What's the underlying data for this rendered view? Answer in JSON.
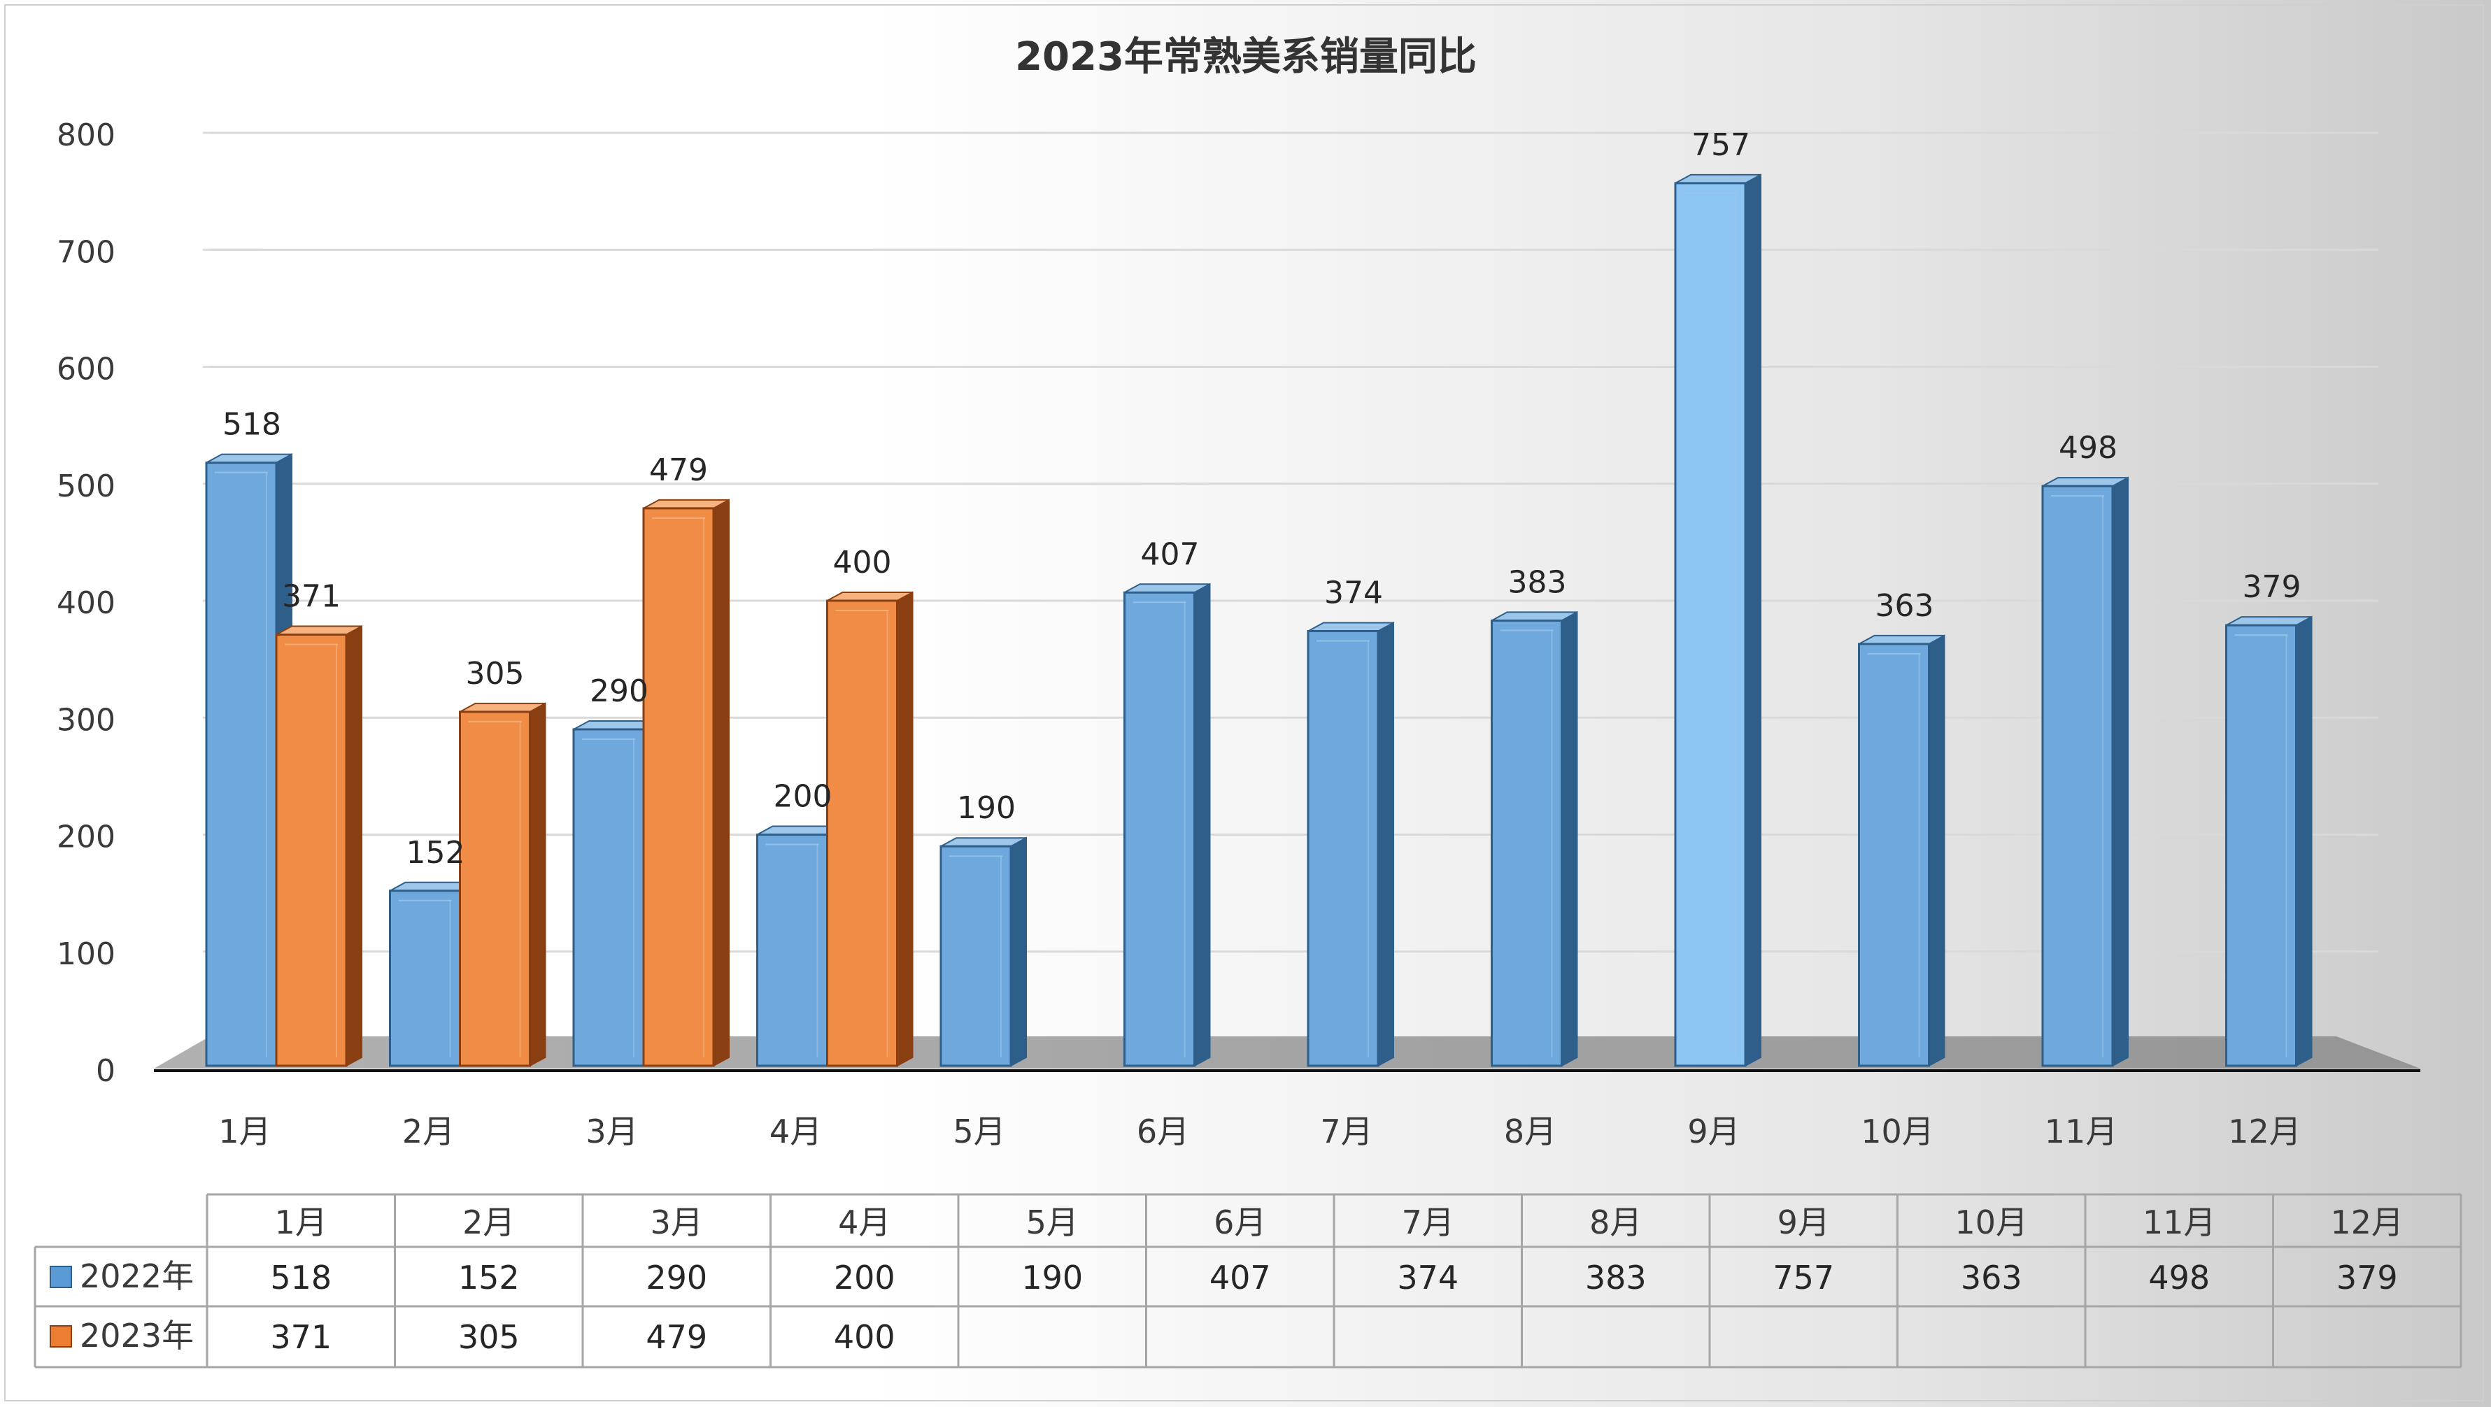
{
  "chart_data": {
    "type": "bar",
    "title": "2023年常熟美系销量同比",
    "categories": [
      "1月",
      "2月",
      "3月",
      "4月",
      "5月",
      "6月",
      "7月",
      "8月",
      "9月",
      "10月",
      "11月",
      "12月"
    ],
    "series": [
      {
        "name": "2022年",
        "color": "#5b9bd5",
        "values": [
          518,
          152,
          290,
          200,
          190,
          407,
          374,
          383,
          757,
          363,
          498,
          379
        ]
      },
      {
        "name": "2023年",
        "color": "#ed7d31",
        "values": [
          371,
          305,
          479,
          400,
          null,
          null,
          null,
          null,
          null,
          null,
          null,
          null
        ]
      }
    ],
    "ylim": [
      0,
      800
    ],
    "yticks": [
      0,
      100,
      200,
      300,
      400,
      500,
      600,
      700,
      800
    ],
    "grid": true,
    "legend": "data-table",
    "data_table": true
  }
}
